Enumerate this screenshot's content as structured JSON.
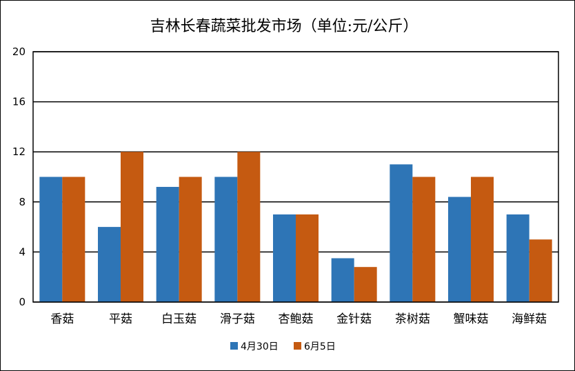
{
  "chart_data": {
    "type": "bar",
    "title": "吉林长春蔬菜批发市场（单位:元/公斤）",
    "categories": [
      "香菇",
      "平菇",
      "白玉菇",
      "滑子菇",
      "杏鲍菇",
      "金针菇",
      "茶树菇",
      "蟹味菇",
      "海鲜菇"
    ],
    "series": [
      {
        "name": "4月30日",
        "color": "#2E75B6",
        "values": [
          10,
          6,
          9.2,
          10,
          7,
          3.5,
          11,
          8.4,
          7
        ]
      },
      {
        "name": "6月5日",
        "color": "#C55A11",
        "values": [
          10,
          12,
          10,
          12,
          7,
          2.8,
          10,
          10,
          5
        ]
      }
    ],
    "yticks": [
      "0",
      "4",
      "8",
      "12",
      "16",
      "20"
    ],
    "ylim": [
      0,
      20
    ],
    "grid": true,
    "legend_position": "bottom"
  }
}
